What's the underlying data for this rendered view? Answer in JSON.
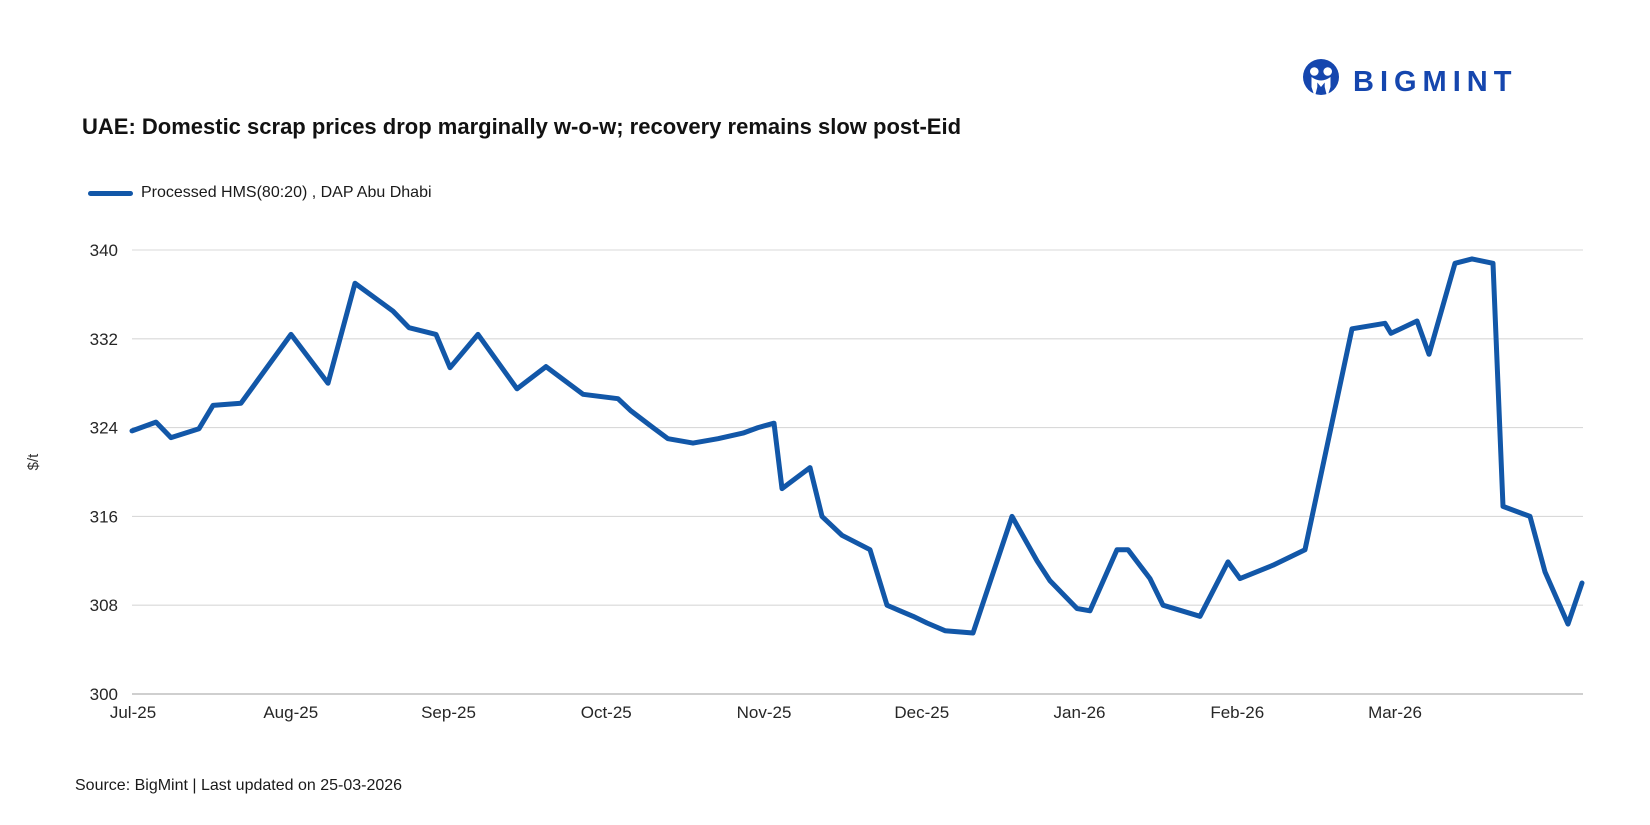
{
  "logo": {
    "brand": "BIGMINT"
  },
  "header": {
    "title": "UAE: Domestic scrap prices drop marginally w-o-w; recovery remains slow post-Eid"
  },
  "legend": {
    "label": "Processed HMS(80:20) , DAP Abu Dhabi"
  },
  "footer": {
    "source": "Source: BigMint | Last updated on 25-03-2026"
  },
  "colors": {
    "line": "#1257a8",
    "logo_blue": "#1546ae",
    "grid": "#d9d9d9",
    "axis_line": "#bfbfbf",
    "tick_text": "#262626"
  },
  "chart_data": {
    "type": "line",
    "title": "UAE: Domestic scrap prices drop marginally w-o-w; recovery remains slow post-Eid",
    "xlabel": "",
    "ylabel": "$/t",
    "ylim": [
      300,
      340
    ],
    "y_ticks": [
      300,
      308,
      316,
      324,
      332,
      340
    ],
    "x_tick_labels": [
      "Jul-25",
      "Aug-25",
      "Sep-25",
      "Oct-25",
      "Nov-25",
      "Dec-25",
      "Jan-26",
      "Feb-26",
      "Mar-26"
    ],
    "grid": "horizontal",
    "legend_position": "top-left",
    "series": [
      {
        "name": "Processed HMS(80:20) , DAP Abu Dhabi",
        "color": "#1257a8",
        "points": [
          [
            132,
            323.7
          ],
          [
            156,
            324.5
          ],
          [
            171,
            323.1
          ],
          [
            199,
            323.9
          ],
          [
            213,
            326.0
          ],
          [
            241,
            326.2
          ],
          [
            291,
            332.4
          ],
          [
            328,
            328.0
          ],
          [
            355,
            337.0
          ],
          [
            393,
            334.5
          ],
          [
            409,
            333.0
          ],
          [
            436,
            332.4
          ],
          [
            450,
            329.4
          ],
          [
            478,
            332.4
          ],
          [
            517,
            327.5
          ],
          [
            546,
            329.5
          ],
          [
            583,
            327.0
          ],
          [
            618,
            326.6
          ],
          [
            631,
            325.5
          ],
          [
            653,
            324.0
          ],
          [
            668,
            323.0
          ],
          [
            693,
            322.6
          ],
          [
            718,
            323.0
          ],
          [
            743,
            323.5
          ],
          [
            758,
            324.0
          ],
          [
            774,
            324.4
          ],
          [
            782,
            318.5
          ],
          [
            810,
            320.4
          ],
          [
            822,
            316.0
          ],
          [
            842,
            314.3
          ],
          [
            870,
            313.0
          ],
          [
            887,
            308.0
          ],
          [
            900,
            307.5
          ],
          [
            913,
            307.0
          ],
          [
            927,
            306.4
          ],
          [
            945,
            305.7
          ],
          [
            973,
            305.5
          ],
          [
            1012,
            316.0
          ],
          [
            1037,
            312.0
          ],
          [
            1050,
            310.2
          ],
          [
            1077,
            307.7
          ],
          [
            1090,
            307.5
          ],
          [
            1117,
            313.0
          ],
          [
            1128,
            313.0
          ],
          [
            1150,
            310.4
          ],
          [
            1163,
            308.0
          ],
          [
            1200,
            307.0
          ],
          [
            1228,
            311.9
          ],
          [
            1240,
            310.4
          ],
          [
            1273,
            311.6
          ],
          [
            1305,
            313.0
          ],
          [
            1352,
            332.9
          ],
          [
            1385,
            333.4
          ],
          [
            1391,
            332.5
          ],
          [
            1417,
            333.6
          ],
          [
            1429,
            330.6
          ],
          [
            1455,
            338.8
          ],
          [
            1472,
            339.2
          ],
          [
            1493,
            338.8
          ],
          [
            1503,
            316.9
          ],
          [
            1530,
            316.0
          ],
          [
            1545,
            311.0
          ],
          [
            1568,
            306.3
          ],
          [
            1582,
            310.0
          ]
        ]
      }
    ]
  }
}
